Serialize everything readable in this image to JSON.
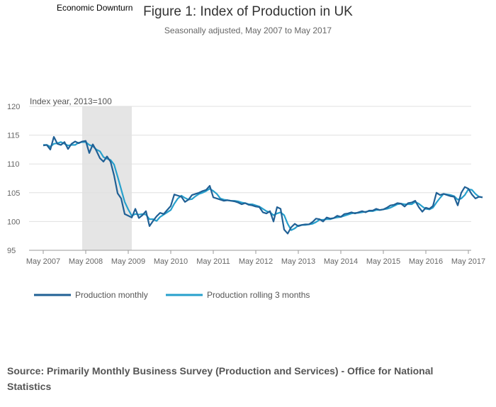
{
  "chart_data": {
    "type": "line",
    "title": "Figure 1: Index of Production in UK",
    "subtitle": "Seasonally adjusted, May 2007 to May 2017",
    "annotation": "Economic Downturn",
    "recession_band": {
      "start": "Apr 2008",
      "end": "Jun 2009",
      "start_month_index": 11,
      "end_month_index": 25
    },
    "ylabel": "Index year, 2013=100",
    "xlabel": "",
    "ylim": [
      95,
      120
    ],
    "yticks": [
      "95",
      "100",
      "105",
      "110",
      "115",
      "120"
    ],
    "xticks": [
      "May 2007",
      "May 2008",
      "May 2009",
      "May 2010",
      "May 2011",
      "May 2012",
      "May 2013",
      "May 2014",
      "May 2015",
      "May 2016",
      "May 2017"
    ],
    "x_start": "May 2007",
    "x_end": "May 2017",
    "grid": true,
    "legend_position": "bottom-left",
    "series": [
      {
        "name": "Production monthly",
        "color": "#206095",
        "values": [
          113.2,
          113.3,
          112.5,
          114.7,
          113.5,
          113.3,
          113.8,
          112.6,
          113.5,
          113.9,
          113.6,
          113.9,
          114.0,
          111.9,
          113.4,
          112.3,
          111.0,
          110.4,
          111.3,
          110.4,
          108.0,
          104.9,
          104.0,
          101.3,
          101.0,
          100.7,
          102.2,
          100.6,
          101.1,
          101.8,
          99.2,
          100.1,
          100.9,
          101.5,
          101.3,
          102.0,
          102.7,
          104.7,
          104.5,
          104.3,
          103.4,
          103.8,
          104.6,
          104.8,
          105.0,
          105.3,
          105.5,
          106.2,
          104.2,
          104.0,
          103.8,
          103.6,
          103.7,
          103.6,
          103.5,
          103.3,
          103.0,
          103.2,
          102.9,
          102.8,
          102.6,
          102.5,
          101.6,
          101.4,
          101.8,
          100.0,
          102.5,
          102.2,
          98.6,
          97.9,
          99.0,
          99.6,
          99.2,
          99.4,
          99.5,
          99.5,
          99.9,
          100.5,
          100.4,
          100.0,
          100.7,
          100.5,
          100.6,
          101.0,
          100.8,
          101.3,
          101.4,
          101.6,
          101.4,
          101.6,
          101.8,
          101.6,
          101.9,
          101.9,
          102.2,
          102.0,
          102.1,
          102.4,
          102.8,
          102.9,
          103.2,
          103.1,
          102.6,
          103.2,
          103.3,
          103.6,
          102.5,
          101.7,
          102.4,
          102.2,
          102.7,
          105.0,
          104.6,
          104.8,
          104.6,
          104.4,
          104.3,
          102.8,
          105.0,
          106.0,
          105.7,
          104.7,
          104.0,
          104.3,
          104.2
        ]
      },
      {
        "name": "Production rolling 3 months",
        "color": "#27a0cc",
        "values": [
          113.3,
          113.3,
          113.0,
          113.5,
          113.6,
          113.8,
          113.5,
          113.2,
          113.3,
          113.3,
          113.7,
          113.8,
          113.8,
          113.3,
          113.1,
          112.5,
          112.2,
          111.2,
          110.9,
          110.7,
          109.9,
          107.8,
          105.6,
          103.4,
          102.1,
          101.0,
          101.3,
          101.2,
          101.3,
          101.2,
          100.4,
          100.4,
          100.1,
          100.8,
          101.2,
          101.6,
          102.0,
          103.1,
          104.0,
          104.5,
          104.1,
          103.8,
          103.9,
          104.4,
          104.8,
          105.0,
          105.3,
          105.7,
          105.3,
          104.8,
          104.0,
          103.8,
          103.7,
          103.6,
          103.6,
          103.5,
          103.3,
          103.2,
          103.0,
          103.0,
          102.8,
          102.6,
          102.2,
          101.8,
          101.6,
          101.1,
          101.4,
          101.6,
          101.1,
          99.6,
          98.5,
          98.8,
          99.3,
          99.4,
          99.4,
          99.5,
          99.6,
          99.9,
          100.3,
          100.3,
          100.4,
          100.4,
          100.6,
          100.7,
          100.8,
          101.0,
          101.2,
          101.4,
          101.5,
          101.5,
          101.6,
          101.7,
          101.8,
          101.8,
          102.0,
          102.0,
          102.1,
          102.2,
          102.4,
          102.7,
          103.0,
          103.1,
          103.0,
          103.0,
          103.0,
          103.4,
          103.1,
          102.6,
          102.2,
          102.1,
          102.4,
          103.3,
          104.1,
          104.8,
          104.7,
          104.6,
          104.4,
          103.8,
          104.0,
          104.6,
          105.6,
          105.5,
          104.8,
          104.3,
          104.2
        ]
      }
    ]
  },
  "source": "Source: Primarily Monthly Business Survey (Production and Services) - Office for National Statistics"
}
